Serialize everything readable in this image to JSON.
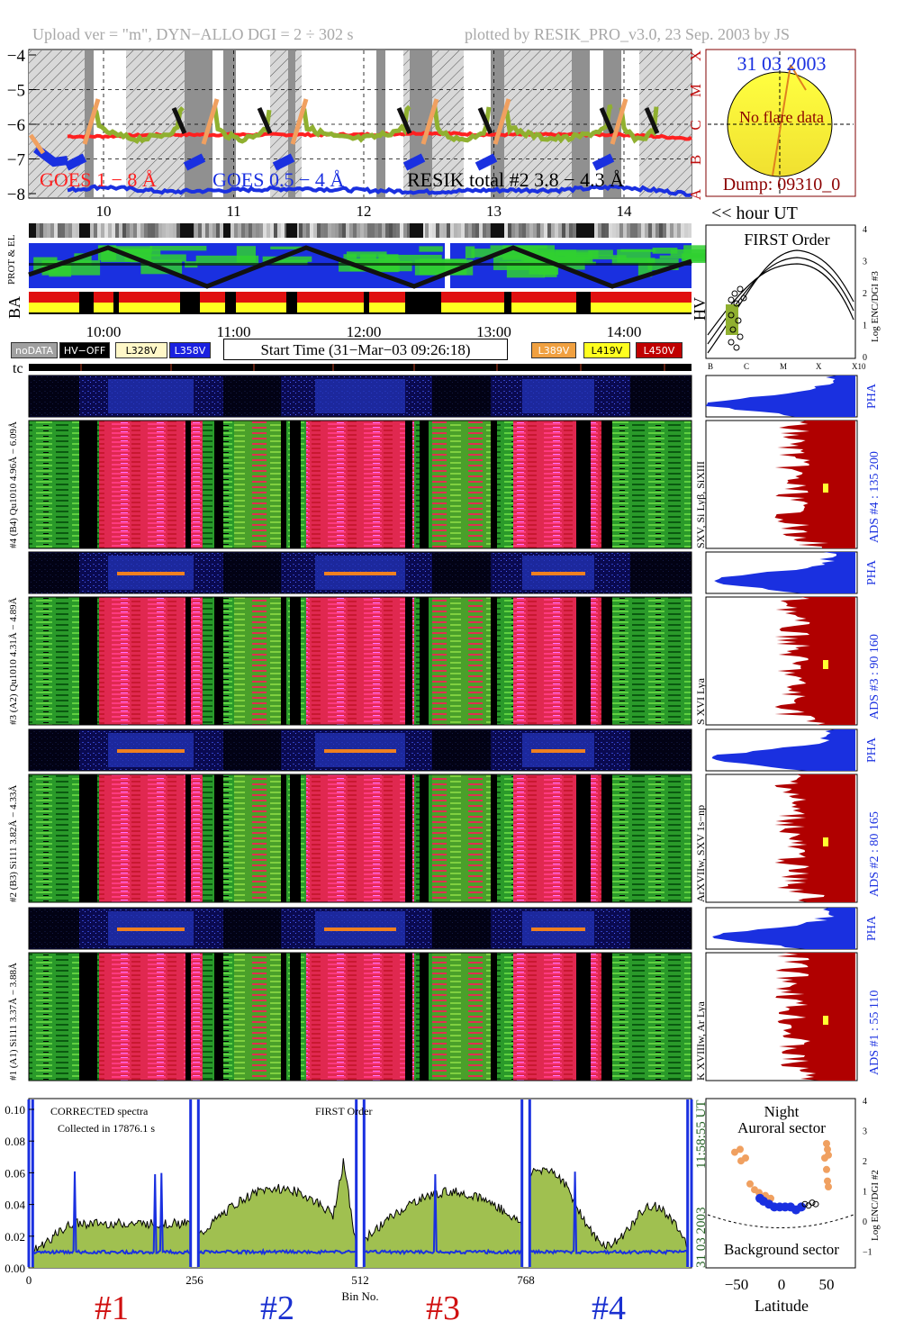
{
  "header": {
    "left": "Upload ver = \"m\", DYN−ALLO DGI =   2 ÷ 302 s",
    "right": "plotted by RESIK_PRO_v3.0, 23 Sep. 2003 by JS"
  },
  "goes_panel": {
    "y_ticks": [
      "−4",
      "−5",
      "−6",
      "−7",
      "−8"
    ],
    "class_labels": [
      "X",
      "M",
      "C",
      "B",
      "A"
    ],
    "legend_goes_long": "GOES 1 − 8 Å",
    "legend_goes_short": "GOES 0.5 − 4 Å",
    "legend_resik": "RESIK total #2  3.8 − 4.3 Å",
    "hour_ticks": [
      "10",
      "11",
      "12",
      "13",
      "14"
    ],
    "hour_unit": "<< hour UT",
    "colors": {
      "goes_long": "#ff2020",
      "goes_short": "#1a30e0",
      "resik": "#90b030",
      "orange": "#f0a060"
    }
  },
  "sun_panel": {
    "date": "31 03 2003",
    "no_flare": "No flare data",
    "dump": "Dump: 09310_0"
  },
  "status_panel": {
    "prot_label": "PROT & EL",
    "ba_label": "BA",
    "hv_label": "HV",
    "time_ticks": [
      "10:00",
      "11:00",
      "12:00",
      "13:00",
      "14:00"
    ],
    "start_time": "Start Time (31−Mar−03 09:26:18)",
    "tc_label": "tc",
    "legend": [
      {
        "label": "noDATA",
        "bg": "#a0a0a0",
        "fg": "#ffffff"
      },
      {
        "label": "HV−OFF",
        "bg": "#000000",
        "fg": "#ffffff"
      },
      {
        "label": "L328V",
        "bg": "#fff8c8",
        "fg": "#000000"
      },
      {
        "label": "L358V",
        "bg": "#1a20e0",
        "fg": "#ffffff"
      },
      {
        "label": "L389V",
        "bg": "#f0a040",
        "fg": "#ffffff"
      },
      {
        "label": "L419V",
        "bg": "#ffff20",
        "fg": "#000000"
      },
      {
        "label": "L450V",
        "bg": "#c00000",
        "fg": "#ffffff"
      }
    ]
  },
  "first_order_panel": {
    "title": "FIRST Order",
    "ylabel": "Log ENC/DGI #3",
    "y_ticks": [
      "4",
      "3",
      "2",
      "1",
      "0"
    ],
    "x_ticks": [
      "B",
      "C",
      "M",
      "X",
      "X10"
    ]
  },
  "channels": [
    {
      "pha_label": "#4 (B4) Qu1010  4.96Å − 6.09Å",
      "lines": "SXV, Si Lyβ, SiXIII",
      "ads": "ADS #4 :   135 200",
      "pha": "PHA"
    },
    {
      "pha_label": "#3 (A2) Qu1010  4.31Å − 4.89Å",
      "lines": "S XVI Lya",
      "ads": "ADS #3 :   90 160",
      "pha": "PHA"
    },
    {
      "pha_label": "#2 (B3) Si111  3.82Å − 4.33Å",
      "lines": "ArXVIIw, SXV 1s−np",
      "ads": "ADS #2 :   80 165",
      "pha": "PHA"
    },
    {
      "pha_label": "#1 (A1) Si111  3.37Å − 3.88Å",
      "lines": "K XVIIIw, Ar Lya",
      "ads": "ADS #1 :   55 110",
      "pha": "PHA"
    }
  ],
  "spectrum_panel": {
    "text_corrected": "CORRECTED spectra",
    "text_collected": "Collected in 17876.1 s",
    "text_first": "FIRST Order",
    "y_ticks": [
      "0.10",
      "0.08",
      "0.06",
      "0.04",
      "0.02",
      "0.00"
    ],
    "x_ticks": [
      "0",
      "256",
      "512",
      "768"
    ],
    "xlabel": "Bin No.",
    "side_time": "11:58:55 UT",
    "side_date": "31 03 2003",
    "channel_labels": [
      {
        "label": "#1",
        "color": "#d01010"
      },
      {
        "label": "#2",
        "color": "#1a30d0"
      },
      {
        "label": "#3",
        "color": "#d01010"
      },
      {
        "label": "#4",
        "color": "#1a30d0"
      }
    ]
  },
  "latitude_panel": {
    "title1": "Night",
    "title2": "Auroral sector",
    "bottom": "Background sector",
    "xlabel": "Latitude",
    "ylabel": "Log ENC/DGI #2",
    "x_ticks": [
      "−50",
      "0",
      "50"
    ],
    "y_ticks": [
      "4",
      "3",
      "2",
      "1",
      "0",
      "−1"
    ]
  },
  "chart_data": {
    "type": "line",
    "title": "",
    "xlabel": "hour UT",
    "ylabel": "",
    "ylim": [
      -8,
      -4
    ],
    "x": [
      9.5,
      10.0,
      10.5,
      11.0,
      11.5,
      12.0,
      12.5,
      13.0,
      13.5,
      14.0,
      14.5
    ],
    "series": [
      {
        "name": "GOES 1 − 8 Å",
        "values": [
          -6.35,
          -6.35,
          -6.3,
          -6.3,
          -6.3,
          -6.3,
          -6.25,
          -6.3,
          -6.3,
          -6.3,
          -6.4
        ]
      },
      {
        "name": "GOES 0.5 − 4 Å",
        "values": [
          -8.0,
          -7.8,
          -7.95,
          -7.9,
          -7.85,
          -7.9,
          -7.95,
          -7.9,
          -7.9,
          -7.8,
          -8.0
        ]
      }
    ]
  }
}
